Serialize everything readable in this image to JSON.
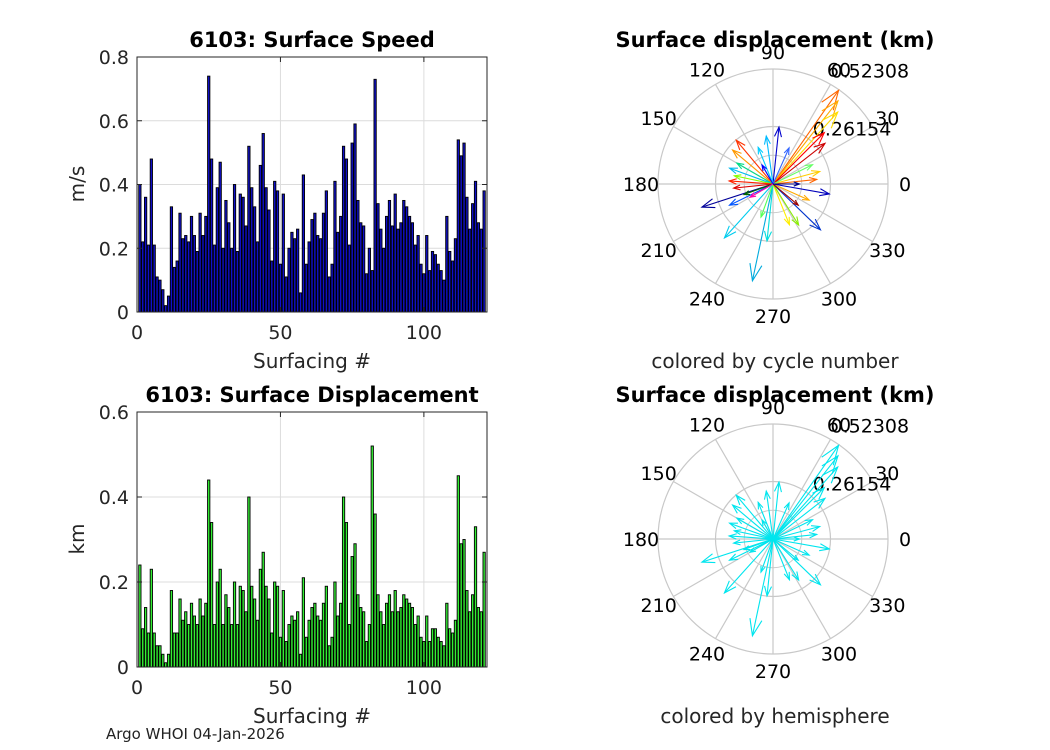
{
  "chart_data": [
    {
      "type": "bar",
      "title": "6103: Surface Speed",
      "xlabel": "Surfacing #",
      "ylabel": "m/s",
      "xlim": [
        0,
        122
      ],
      "ylim": [
        0,
        0.8
      ],
      "xticks": [
        0,
        50,
        100
      ],
      "yticks": [
        0,
        0.2,
        0.4,
        0.6,
        0.8
      ],
      "ytick_labels": [
        "0",
        "0.2",
        "0.4",
        "0.6",
        "0.8"
      ],
      "grid": true,
      "color": "#1010c8",
      "values": [
        0.4,
        0.22,
        0.36,
        0.21,
        0.48,
        0.21,
        0.11,
        0.1,
        0.07,
        0.02,
        0.05,
        0.33,
        0.14,
        0.16,
        0.31,
        0.23,
        0.24,
        0.22,
        0.3,
        0.24,
        0.19,
        0.31,
        0.24,
        0.3,
        0.74,
        0.48,
        0.21,
        0.39,
        0.47,
        0.2,
        0.35,
        0.28,
        0.2,
        0.4,
        0.19,
        0.37,
        0.36,
        0.27,
        0.52,
        0.39,
        0.33,
        0.22,
        0.46,
        0.56,
        0.39,
        0.32,
        0.16,
        0.41,
        0.38,
        0.15,
        0.37,
        0.11,
        0.2,
        0.25,
        0.23,
        0.26,
        0.06,
        0.43,
        0.15,
        0.22,
        0.29,
        0.31,
        0.24,
        0.23,
        0.31,
        0.38,
        0.11,
        0.15,
        0.41,
        0.25,
        0.3,
        0.52,
        0.48,
        0.21,
        0.53,
        0.59,
        0.35,
        0.28,
        0.27,
        0.12,
        0.2,
        0.13,
        0.73,
        0.34,
        0.26,
        0.2,
        0.3,
        0.35,
        0.27,
        0.37,
        0.26,
        0.28,
        0.35,
        0.33,
        0.3,
        0.28,
        0.21,
        0.24,
        0.15,
        0.12,
        0.24,
        0.13,
        0.19,
        0.18,
        0.15,
        0.13,
        0.1,
        0.3,
        0.19,
        0.16,
        0.23,
        0.54,
        0.49,
        0.53,
        0.36,
        0.26,
        0.34,
        0.41,
        0.28,
        0.26,
        0.38
      ]
    },
    {
      "type": "bar",
      "title": "6103: Surface Displacement",
      "xlabel": "Surfacing #",
      "ylabel": "km",
      "xlim": [
        0,
        122
      ],
      "ylim": [
        0,
        0.6
      ],
      "xticks": [
        0,
        50,
        100
      ],
      "yticks": [
        0,
        0.2,
        0.4,
        0.6
      ],
      "ytick_labels": [
        "0",
        "0.2",
        "0.4",
        "0.6"
      ],
      "grid": true,
      "color": "#33ee33",
      "values": [
        0.24,
        0.09,
        0.14,
        0.08,
        0.23,
        0.08,
        0.05,
        0.05,
        0.03,
        0.01,
        0.03,
        0.18,
        0.08,
        0.08,
        0.16,
        0.11,
        0.13,
        0.1,
        0.15,
        0.12,
        0.1,
        0.16,
        0.12,
        0.15,
        0.44,
        0.34,
        0.1,
        0.2,
        0.23,
        0.1,
        0.17,
        0.14,
        0.1,
        0.2,
        0.1,
        0.19,
        0.18,
        0.13,
        0.4,
        0.19,
        0.16,
        0.11,
        0.23,
        0.27,
        0.19,
        0.16,
        0.08,
        0.2,
        0.19,
        0.07,
        0.18,
        0.06,
        0.1,
        0.12,
        0.11,
        0.13,
        0.03,
        0.21,
        0.07,
        0.11,
        0.14,
        0.15,
        0.12,
        0.11,
        0.15,
        0.19,
        0.05,
        0.07,
        0.2,
        0.12,
        0.15,
        0.4,
        0.34,
        0.1,
        0.26,
        0.29,
        0.17,
        0.14,
        0.13,
        0.06,
        0.1,
        0.52,
        0.36,
        0.17,
        0.13,
        0.1,
        0.15,
        0.17,
        0.13,
        0.18,
        0.13,
        0.14,
        0.17,
        0.16,
        0.15,
        0.14,
        0.1,
        0.12,
        0.07,
        0.06,
        0.12,
        0.06,
        0.09,
        0.09,
        0.07,
        0.06,
        0.05,
        0.15,
        0.09,
        0.08,
        0.11,
        0.45,
        0.29,
        0.3,
        0.18,
        0.13,
        0.17,
        0.33,
        0.14,
        0.13,
        0.27
      ]
    },
    {
      "type": "polar_compass",
      "title": "Surface displacement (km)",
      "caption": "colored by cycle number",
      "rmax": 0.52308,
      "rings": [
        0.26154,
        0.52308
      ],
      "ring_labels": [
        "0.26154",
        "0.52308"
      ],
      "angle_labels": [
        "0",
        "30",
        "60",
        "90",
        "120",
        "150",
        "180",
        "210",
        "240",
        "270",
        "300",
        "330"
      ],
      "colormap": "jet",
      "arrows": [
        {
          "angle": 55,
          "r": 0.52,
          "color": "#ff6600"
        },
        {
          "angle": 52,
          "r": 0.48,
          "color": "#ffaa00"
        },
        {
          "angle": 48,
          "r": 0.44,
          "color": "#ffdd00"
        },
        {
          "angle": 45,
          "r": 0.33,
          "color": "#ff0000"
        },
        {
          "angle": 38,
          "r": 0.3,
          "color": "#cc0000"
        },
        {
          "angle": 84,
          "r": 0.26,
          "color": "#0000cc"
        },
        {
          "angle": 98,
          "r": 0.22,
          "color": "#00bbff"
        },
        {
          "angle": 112,
          "r": 0.18,
          "color": "#00ccff"
        },
        {
          "angle": 130,
          "r": 0.26,
          "color": "#ff3300"
        },
        {
          "angle": 140,
          "r": 0.24,
          "color": "#ff9900"
        },
        {
          "angle": 150,
          "r": 0.19,
          "color": "#00dd88"
        },
        {
          "angle": 160,
          "r": 0.21,
          "color": "#00bbee"
        },
        {
          "angle": 168,
          "r": 0.18,
          "color": "#88ff00"
        },
        {
          "angle": 176,
          "r": 0.2,
          "color": "#ff2200"
        },
        {
          "angle": 186,
          "r": 0.18,
          "color": "#dd0000"
        },
        {
          "angle": 198,
          "r": 0.34,
          "color": "#000099"
        },
        {
          "angle": 206,
          "r": 0.22,
          "color": "#0055ff"
        },
        {
          "angle": 228,
          "r": 0.33,
          "color": "#00ccee"
        },
        {
          "angle": 258,
          "r": 0.45,
          "color": "#00aadd"
        },
        {
          "angle": 264,
          "r": 0.26,
          "color": "#00dddd"
        },
        {
          "angle": 292,
          "r": 0.2,
          "color": "#ffee00"
        },
        {
          "angle": 302,
          "r": 0.22,
          "color": "#88ee00"
        },
        {
          "angle": 316,
          "r": 0.3,
          "color": "#0033cc"
        },
        {
          "angle": 336,
          "r": 0.18,
          "color": "#ffaa00"
        },
        {
          "angle": 350,
          "r": 0.26,
          "color": "#0000bb"
        },
        {
          "angle": 6,
          "r": 0.2,
          "color": "#ff6600"
        },
        {
          "angle": 15,
          "r": 0.22,
          "color": "#ffcc00"
        },
        {
          "angle": 26,
          "r": 0.2,
          "color": "#66ff66"
        },
        {
          "angle": 66,
          "r": 0.18,
          "color": "#3366ff"
        },
        {
          "angle": 200,
          "r": 0.14,
          "color": "#006600"
        },
        {
          "angle": 250,
          "r": 0.16,
          "color": "#55ff55"
        },
        {
          "angle": 320,
          "r": 0.15,
          "color": "#990000"
        },
        {
          "angle": 120,
          "r": 0.1,
          "color": "#0000ff"
        },
        {
          "angle": 210,
          "r": 0.12,
          "color": "#ff00aa"
        },
        {
          "angle": 0,
          "r": 0.12,
          "color": "#000088"
        }
      ]
    },
    {
      "type": "polar_compass",
      "title": "Surface displacement (km)",
      "caption": "colored by hemisphere",
      "rmax": 0.52308,
      "rings": [
        0.26154,
        0.52308
      ],
      "ring_labels": [
        "0.26154",
        "0.52308"
      ],
      "angle_labels": [
        "0",
        "30",
        "60",
        "90",
        "120",
        "150",
        "180",
        "210",
        "240",
        "270",
        "300",
        "330"
      ],
      "color": "#00e5ee",
      "arrows": [
        {
          "angle": 55,
          "r": 0.52
        },
        {
          "angle": 52,
          "r": 0.48
        },
        {
          "angle": 48,
          "r": 0.44
        },
        {
          "angle": 45,
          "r": 0.33
        },
        {
          "angle": 38,
          "r": 0.3
        },
        {
          "angle": 84,
          "r": 0.26
        },
        {
          "angle": 98,
          "r": 0.22
        },
        {
          "angle": 112,
          "r": 0.18
        },
        {
          "angle": 130,
          "r": 0.26
        },
        {
          "angle": 140,
          "r": 0.24
        },
        {
          "angle": 150,
          "r": 0.19
        },
        {
          "angle": 160,
          "r": 0.21
        },
        {
          "angle": 168,
          "r": 0.18
        },
        {
          "angle": 176,
          "r": 0.2
        },
        {
          "angle": 186,
          "r": 0.18
        },
        {
          "angle": 198,
          "r": 0.34
        },
        {
          "angle": 206,
          "r": 0.22
        },
        {
          "angle": 228,
          "r": 0.33
        },
        {
          "angle": 258,
          "r": 0.45
        },
        {
          "angle": 264,
          "r": 0.26
        },
        {
          "angle": 292,
          "r": 0.2
        },
        {
          "angle": 302,
          "r": 0.22
        },
        {
          "angle": 316,
          "r": 0.3
        },
        {
          "angle": 336,
          "r": 0.18
        },
        {
          "angle": 350,
          "r": 0.26
        },
        {
          "angle": 6,
          "r": 0.2
        },
        {
          "angle": 15,
          "r": 0.22
        },
        {
          "angle": 26,
          "r": 0.2
        },
        {
          "angle": 66,
          "r": 0.18
        },
        {
          "angle": 200,
          "r": 0.14
        },
        {
          "angle": 250,
          "r": 0.16
        },
        {
          "angle": 320,
          "r": 0.15
        },
        {
          "angle": 120,
          "r": 0.1
        },
        {
          "angle": 210,
          "r": 0.12
        },
        {
          "angle": 0,
          "r": 0.12
        }
      ]
    }
  ],
  "footer": "Argo WHOI 04-Jan-2026"
}
